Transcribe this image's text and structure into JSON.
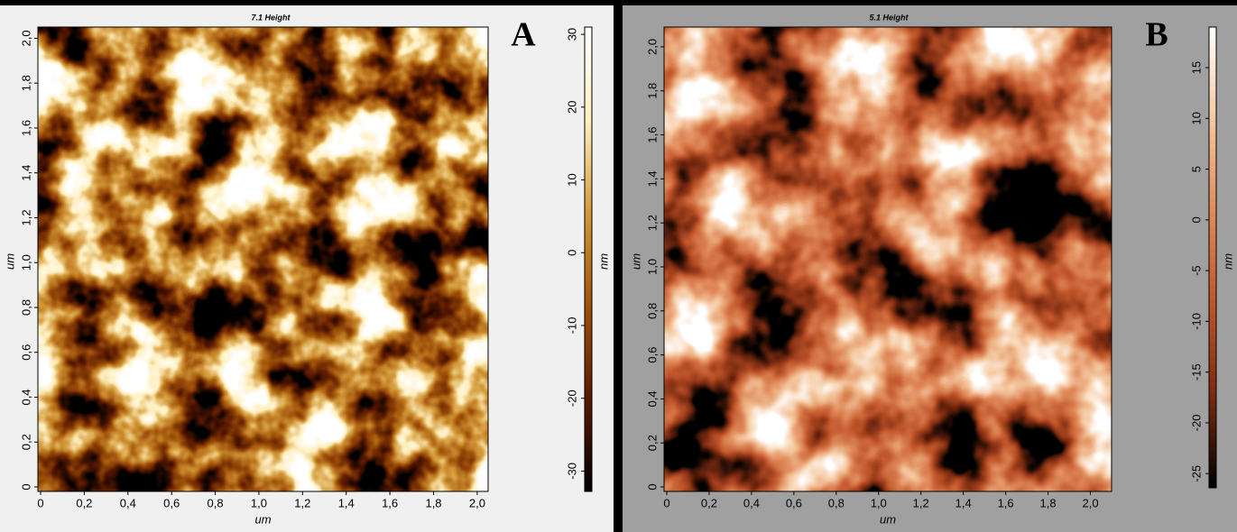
{
  "chart_data": [
    {
      "type": "heatmap",
      "title": "7.1 Height",
      "panel_label": "A",
      "xlabel": "um",
      "ylabel": "um",
      "xlim": [
        0,
        2.05
      ],
      "ylim": [
        0,
        2.05
      ],
      "xticks": [
        0,
        {
          "value": 0.2,
          "label": "0,2"
        },
        {
          "value": 0.4,
          "label": "0,4"
        },
        {
          "value": 0.6,
          "label": "0,6"
        },
        {
          "value": 0.8,
          "label": "0,8"
        },
        {
          "value": 1.0,
          "label": "1,0"
        },
        {
          "value": 1.2,
          "label": "1,2"
        },
        {
          "value": 1.4,
          "label": "1,4"
        },
        {
          "value": 1.6,
          "label": "1,6"
        },
        {
          "value": 1.8,
          "label": "1,8"
        },
        {
          "value": 2.0,
          "label": "2,0"
        }
      ],
      "yticks": [
        0,
        {
          "value": 0.2,
          "label": "0,2"
        },
        {
          "value": 0.4,
          "label": "0,4"
        },
        {
          "value": 0.6,
          "label": "0,6"
        },
        {
          "value": 0.8,
          "label": "0,8"
        },
        {
          "value": 1.0,
          "label": "1,0"
        },
        {
          "value": 1.2,
          "label": "1,2"
        },
        {
          "value": 1.4,
          "label": "1,4"
        },
        {
          "value": 1.6,
          "label": "1,6"
        },
        {
          "value": 1.8,
          "label": "1,8"
        },
        {
          "value": 2.0,
          "label": "2,0"
        }
      ],
      "colorbar": {
        "label": "nm",
        "lim": [
          -32.8,
          31
        ],
        "ticks": [
          -30,
          -20,
          -10,
          0,
          10,
          20,
          30
        ],
        "colors": [
          "#000000",
          "#5a1a00",
          "#a0520a",
          "#d49a3a",
          "#fff0c0",
          "#ffffff"
        ]
      }
    },
    {
      "type": "heatmap",
      "title": "5.1 Height",
      "panel_label": "B",
      "xlabel": "um",
      "ylabel": "um",
      "xlim": [
        0,
        2.1
      ],
      "ylim": [
        0,
        2.09
      ],
      "xticks": [
        0,
        {
          "value": 0.2,
          "label": "0,2"
        },
        {
          "value": 0.4,
          "label": "0,4"
        },
        {
          "value": 0.6,
          "label": "0,6"
        },
        {
          "value": 0.8,
          "label": "0,8"
        },
        {
          "value": 1.0,
          "label": "1,0"
        },
        {
          "value": 1.2,
          "label": "1,2"
        },
        {
          "value": 1.4,
          "label": "1,4"
        },
        {
          "value": 1.6,
          "label": "1,6"
        },
        {
          "value": 1.8,
          "label": "1,8"
        },
        {
          "value": 2.0,
          "label": "2,0"
        }
      ],
      "yticks": [
        0,
        {
          "value": 0.2,
          "label": "0,2"
        },
        {
          "value": 0.4,
          "label": "0,4"
        },
        {
          "value": 0.6,
          "label": "0,6"
        },
        {
          "value": 0.8,
          "label": "0,8"
        },
        {
          "value": 1.0,
          "label": "1,0"
        },
        {
          "value": 1.2,
          "label": "1,2"
        },
        {
          "value": 1.4,
          "label": "1,4"
        },
        {
          "value": 1.6,
          "label": "1,6"
        },
        {
          "value": 1.8,
          "label": "1,8"
        },
        {
          "value": 2.0,
          "label": "2,0"
        }
      ],
      "colorbar": {
        "label": "nm",
        "lim": [
          -26.4,
          19
        ],
        "ticks": [
          -25,
          -20,
          -15,
          -10,
          -5,
          0,
          5,
          10,
          15
        ],
        "colors": [
          "#000000",
          "#7a2a10",
          "#c0552a",
          "#e08a5a",
          "#f5c8a0",
          "#ffffff"
        ]
      }
    }
  ]
}
